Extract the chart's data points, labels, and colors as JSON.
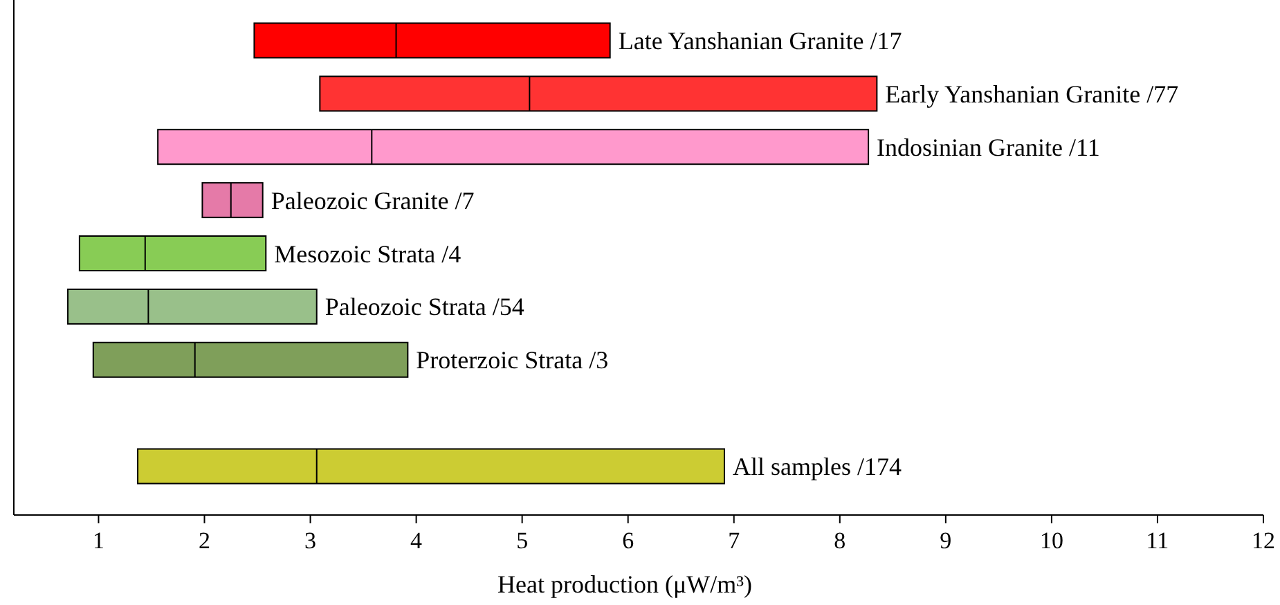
{
  "chart_data": {
    "type": "box",
    "orientation": "horizontal",
    "xlabel": "Heat production (μW/m³)",
    "categories": [
      "Late Yanshanian Granite /17",
      "Early Yanshanian Granite /77",
      "Indosinian Granite /11",
      "Paleozoic Granite /7",
      "Mesozoic Strata /4",
      "Paleozoic Strata /54",
      "Proterzoic Strata /3",
      null,
      "All samples /174"
    ],
    "boxes": [
      {
        "low": 2.47,
        "q1": 2.47,
        "median": 3.81,
        "q3": 5.83,
        "high": 5.83
      },
      {
        "low": 3.09,
        "q1": 3.09,
        "median": 5.07,
        "q3": 8.35,
        "high": 8.35
      },
      {
        "low": 1.56,
        "q1": 1.56,
        "median": 3.58,
        "q3": 8.27,
        "high": 8.27
      },
      {
        "low": 1.98,
        "q1": 1.98,
        "median": 2.25,
        "q3": 2.55,
        "high": 2.55
      },
      {
        "low": 0.82,
        "q1": 0.82,
        "median": 1.44,
        "q3": 2.58,
        "high": 2.58
      },
      {
        "low": 0.71,
        "q1": 0.71,
        "median": 1.47,
        "q3": 3.06,
        "high": 3.06
      },
      {
        "low": 0.95,
        "q1": 0.95,
        "median": 1.91,
        "q3": 3.92,
        "high": 3.92
      },
      null,
      {
        "low": 1.37,
        "q1": 1.37,
        "median": 3.06,
        "q3": 6.91,
        "high": 6.91
      }
    ],
    "colors": [
      "#ff0000",
      "#ff3333",
      "#ff99cc",
      "#e57aa8",
      "#88cc55",
      "#99c08a",
      "#7f9f5a",
      null,
      "#cccc33"
    ],
    "xlim": [
      0.2,
      12
    ],
    "xticks": [
      1,
      2,
      3,
      4,
      5,
      6,
      7,
      8,
      9,
      10,
      11,
      12
    ],
    "grid": false
  }
}
